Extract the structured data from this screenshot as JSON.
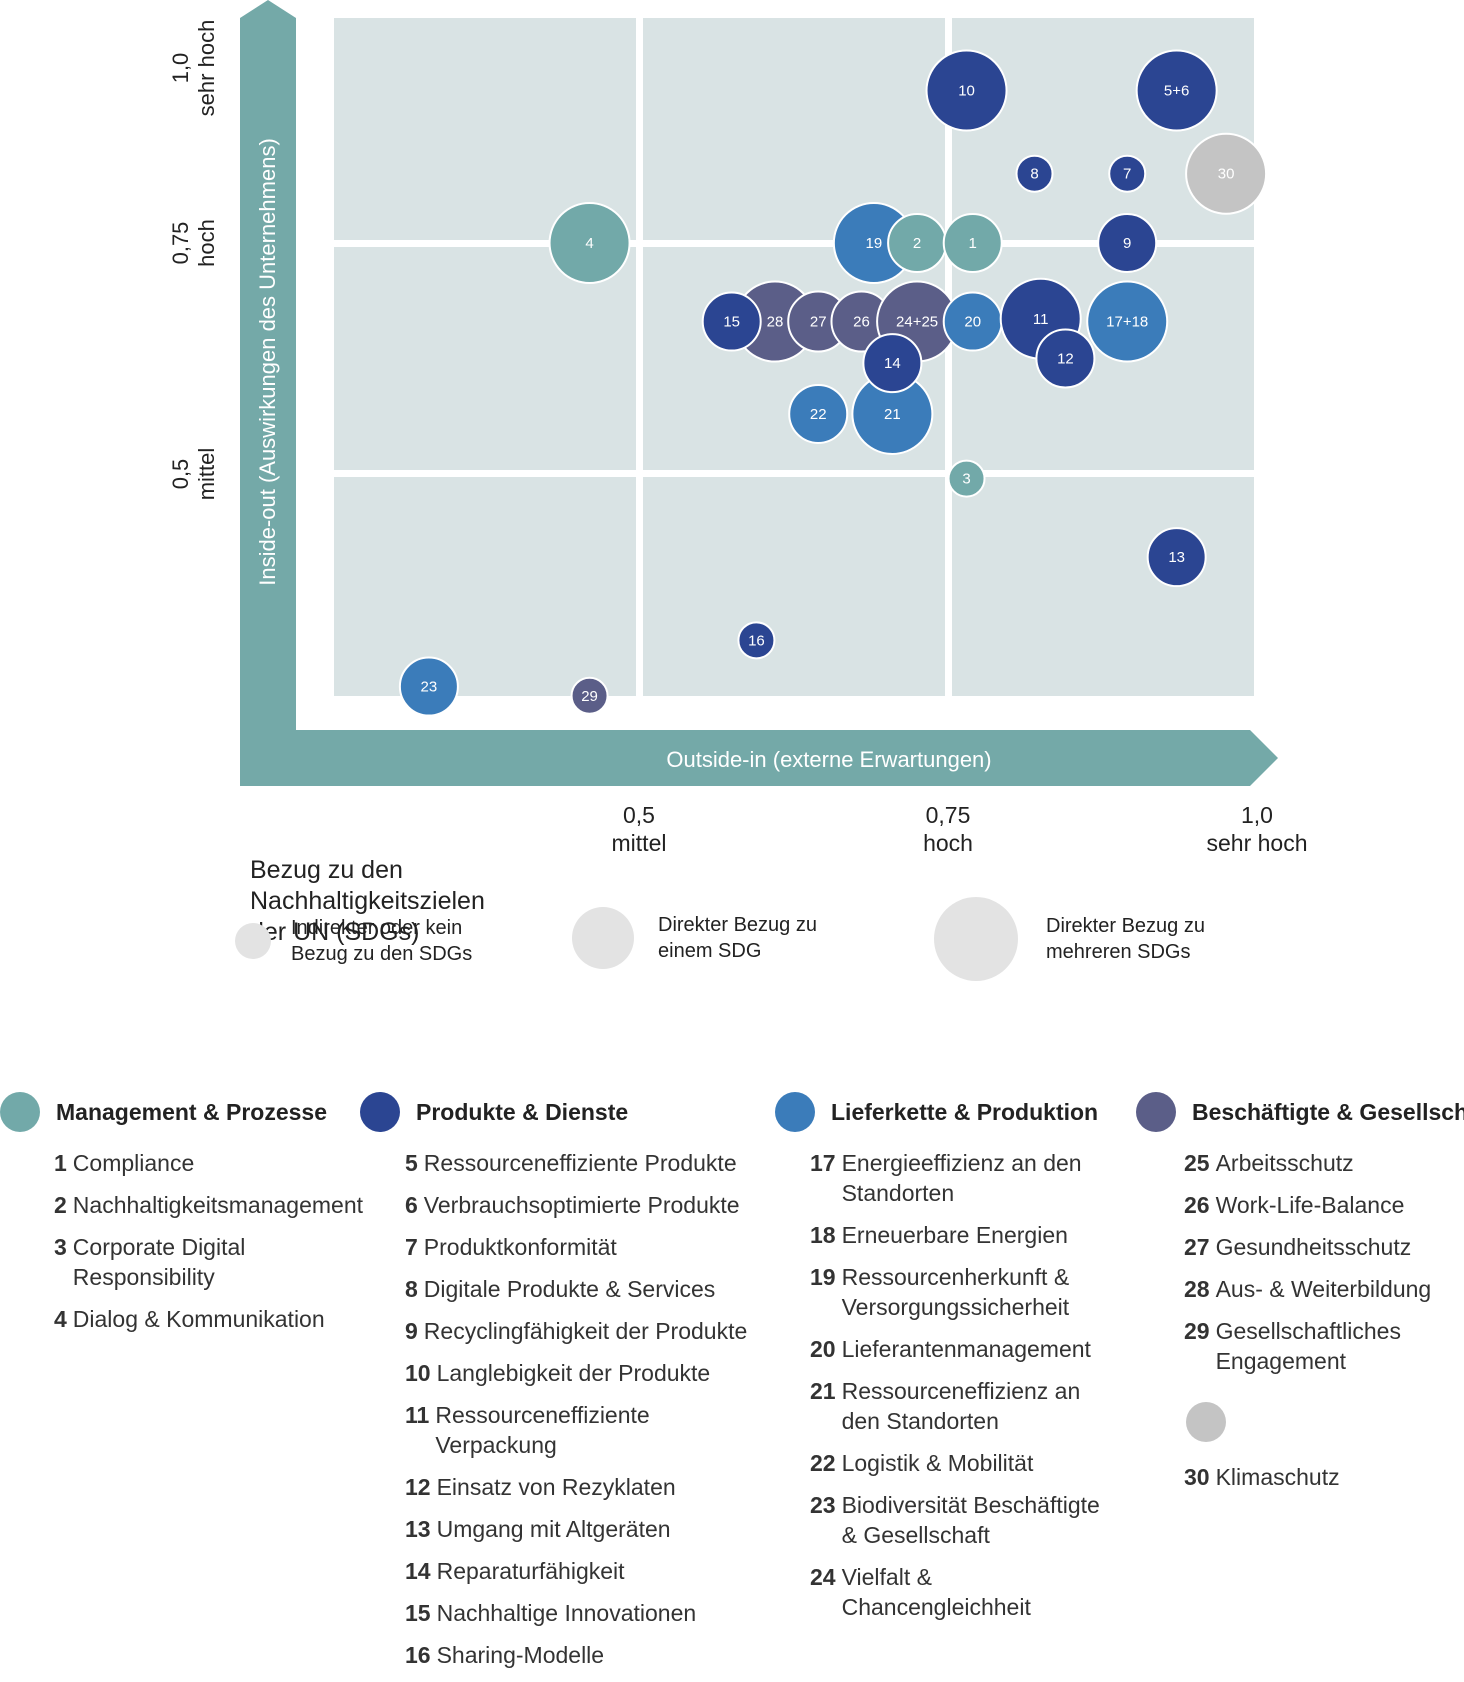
{
  "chart_data": {
    "type": "bubble",
    "title": "",
    "xlabel": "Outside-in (externe Erwartungen)",
    "ylabel": "Inside-out (Auswirkungen des Unternehmens)",
    "x_ticks": [
      {
        "value": 0.5,
        "number": "0,5",
        "word": "mittel"
      },
      {
        "value": 0.75,
        "number": "0,75",
        "word": "hoch"
      },
      {
        "value": 1.0,
        "number": "1,0",
        "word": "sehr hoch"
      }
    ],
    "y_ticks": [
      {
        "value": 0.5,
        "number": "0,5",
        "word": "mittel"
      },
      {
        "value": 0.75,
        "number": "0,75",
        "word": "hoch"
      },
      {
        "value": 1.0,
        "number": "1,0",
        "word": "sehr hoch"
      }
    ],
    "xlim": [
      0.27,
      1.05
    ],
    "ylim": [
      0.25,
      1.0
    ],
    "grid": true,
    "size_legend": {
      "title": "Bezug zu den Nachhaltigkeitszielen der UN (SDGs)",
      "levels": [
        {
          "level": 1,
          "label": "Indirekter oder kein Bezug zu den SDGs"
        },
        {
          "level": 2,
          "label": "Direkter Bezug zu einem SDG"
        },
        {
          "level": 3,
          "label": "Direkter Bezug zu mehreren SDGs"
        }
      ]
    },
    "categories": [
      {
        "id": "mp",
        "name": "Management & Prozesse",
        "color": "#72a9a9"
      },
      {
        "id": "pd",
        "name": "Produkte & Dienste",
        "color": "#2b4592"
      },
      {
        "id": "lp",
        "name": "Lieferkette & Produktion",
        "color": "#3b7cba"
      },
      {
        "id": "bg",
        "name": "Beschäftigte & Gesellschaft",
        "color": "#5b5e88"
      },
      {
        "id": "kl",
        "name": "",
        "color": "#c4c4c4"
      }
    ],
    "points": [
      {
        "label": "23",
        "cat": "lp",
        "x": 0.33,
        "y": 0.27,
        "size": 2
      },
      {
        "label": "29",
        "cat": "bg",
        "x": 0.46,
        "y": 0.26,
        "size": 1
      },
      {
        "label": "16",
        "cat": "pd",
        "x": 0.595,
        "y": 0.32,
        "size": 1
      },
      {
        "label": "4",
        "cat": "mp",
        "x": 0.46,
        "y": 0.75,
        "size": 3
      },
      {
        "label": "13",
        "cat": "pd",
        "x": 0.935,
        "y": 0.41,
        "size": 2
      },
      {
        "label": "3",
        "cat": "mp",
        "x": 0.765,
        "y": 0.495,
        "size": 1
      },
      {
        "label": "22",
        "cat": "lp",
        "x": 0.645,
        "y": 0.565,
        "size": 2
      },
      {
        "label": "21",
        "cat": "lp",
        "x": 0.705,
        "y": 0.565,
        "size": 3
      },
      {
        "label": "28",
        "cat": "bg",
        "x": 0.61,
        "y": 0.665,
        "size": 3
      },
      {
        "label": "27",
        "cat": "bg",
        "x": 0.645,
        "y": 0.665,
        "size": 2.5
      },
      {
        "label": "26",
        "cat": "bg",
        "x": 0.68,
        "y": 0.665,
        "size": 2.5
      },
      {
        "label": "24+25",
        "cat": "bg",
        "x": 0.725,
        "y": 0.665,
        "size": 3
      },
      {
        "label": "15",
        "cat": "pd",
        "x": 0.575,
        "y": 0.665,
        "size": 2
      },
      {
        "label": "14",
        "cat": "pd",
        "x": 0.705,
        "y": 0.62,
        "size": 2
      },
      {
        "label": "19",
        "cat": "lp",
        "x": 0.69,
        "y": 0.75,
        "size": 3
      },
      {
        "label": "2",
        "cat": "mp",
        "x": 0.725,
        "y": 0.75,
        "size": 2
      },
      {
        "label": "1",
        "cat": "mp",
        "x": 0.77,
        "y": 0.75,
        "size": 2
      },
      {
        "label": "20",
        "cat": "lp",
        "x": 0.77,
        "y": 0.665,
        "size": 2
      },
      {
        "label": "11",
        "cat": "pd",
        "x": 0.825,
        "y": 0.668,
        "size": 3
      },
      {
        "label": "12",
        "cat": "pd",
        "x": 0.845,
        "y": 0.625,
        "size": 2
      },
      {
        "label": "17+18",
        "cat": "lp",
        "x": 0.895,
        "y": 0.665,
        "size": 3
      },
      {
        "label": "10",
        "cat": "pd",
        "x": 0.765,
        "y": 0.915,
        "size": 3
      },
      {
        "label": "5+6",
        "cat": "pd",
        "x": 0.935,
        "y": 0.915,
        "size": 3
      },
      {
        "label": "8",
        "cat": "pd",
        "x": 0.82,
        "y": 0.825,
        "size": 1
      },
      {
        "label": "7",
        "cat": "pd",
        "x": 0.895,
        "y": 0.825,
        "size": 1
      },
      {
        "label": "9",
        "cat": "pd",
        "x": 0.895,
        "y": 0.75,
        "size": 2
      },
      {
        "label": "30",
        "cat": "kl",
        "x": 0.975,
        "y": 0.825,
        "size": 3
      }
    ]
  },
  "legend": {
    "management": {
      "title": "Management & Prozesse",
      "items": [
        {
          "num": "1",
          "text": "Compliance"
        },
        {
          "num": "2",
          "text": "Nachhaltigkeitsmanagement"
        },
        {
          "num": "3",
          "text": "Corporate Digital Responsibility"
        },
        {
          "num": "4",
          "text": "Dialog & Kommunikation"
        }
      ]
    },
    "produkte": {
      "title": "Produkte & Dienste",
      "items": [
        {
          "num": "5",
          "text": "Ressourceneffiziente Produkte"
        },
        {
          "num": "6",
          "text": "Verbrauchsoptimierte Produkte"
        },
        {
          "num": "7",
          "text": "Produktkonformität"
        },
        {
          "num": "8",
          "text": "Digitale Produkte & Services"
        },
        {
          "num": "9",
          "text": "Recyclingfähigkeit der Produkte"
        },
        {
          "num": "10",
          "text": "Langlebigkeit der Produkte"
        },
        {
          "num": "11",
          "text": "Ressourceneffiziente Verpackung"
        },
        {
          "num": "12",
          "text": "Einsatz von Rezyklaten"
        },
        {
          "num": "13",
          "text": "Umgang mit Altgeräten"
        },
        {
          "num": "14",
          "text": "Reparaturfähigkeit"
        },
        {
          "num": "15",
          "text": "Nachhaltige Innovationen"
        },
        {
          "num": "16",
          "text": "Sharing-Modelle"
        }
      ]
    },
    "lieferkette": {
      "title": "Lieferkette & Produktion",
      "items": [
        {
          "num": "17",
          "text": "Energieeffizienz an den Standorten"
        },
        {
          "num": "18",
          "text": "Erneuerbare Energien"
        },
        {
          "num": "19",
          "text": "Ressourcenherkunft & Versorgungssicherheit"
        },
        {
          "num": "20",
          "text": "Lieferantenmanagement"
        },
        {
          "num": "21",
          "text": "Ressourceneffizienz an den Standorten"
        },
        {
          "num": "22",
          "text": "Logistik & Mobilität"
        },
        {
          "num": "23",
          "text": "Biodiversität Beschäftigte & Gesellschaft"
        },
        {
          "num": "24",
          "text": "Vielfalt & Chancengleichheit"
        }
      ]
    },
    "beschaeftigte": {
      "title": "Beschäftigte & Gesellschaft",
      "items": [
        {
          "num": "25",
          "text": "Arbeitsschutz"
        },
        {
          "num": "26",
          "text": "Work-Life-Balance"
        },
        {
          "num": "27",
          "text": "Gesundheitsschutz"
        },
        {
          "num": "28",
          "text": "Aus- & Weiterbildung"
        },
        {
          "num": "29",
          "text": "Gesellschaftliches Engagement"
        }
      ]
    },
    "klimaschutz": {
      "num": "30",
      "text": "Klimaschutz"
    }
  }
}
